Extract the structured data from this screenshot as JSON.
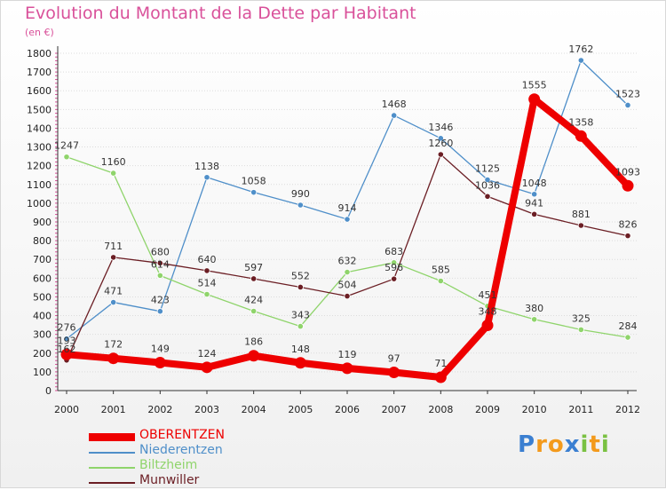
{
  "chart_data": {
    "type": "line",
    "title": "Evolution du Montant de la Dette par Habitant",
    "unit_label": "(en €)",
    "xlabel": "",
    "ylabel": "",
    "categories": [
      "2000",
      "2001",
      "2002",
      "2003",
      "2004",
      "2005",
      "2006",
      "2007",
      "2008",
      "2009",
      "2010",
      "2011",
      "2012"
    ],
    "ylim": [
      0,
      1800
    ],
    "yticks": [
      0,
      100,
      200,
      300,
      400,
      500,
      600,
      700,
      800,
      900,
      1000,
      1100,
      1200,
      1300,
      1400,
      1500,
      1600,
      1700,
      1800
    ],
    "series": [
      {
        "name": "Niederentzen",
        "color": "#4f8fc9",
        "values": [
          276,
          471,
          423,
          1138,
          1058,
          990,
          914,
          1468,
          1346,
          1125,
          1048,
          1762,
          1523
        ]
      },
      {
        "name": "Biltzheim",
        "color": "#8fd46b",
        "values": [
          1247,
          1160,
          614,
          514,
          424,
          343,
          632,
          683,
          585,
          451,
          380,
          325,
          284
        ]
      },
      {
        "name": "Munwiller",
        "color": "#6b1e24",
        "values": [
          162,
          711,
          680,
          640,
          597,
          552,
          504,
          596,
          1260,
          1036,
          941,
          881,
          826
        ]
      },
      {
        "name": "OBERENTZEN",
        "color": "#ee0000",
        "values": [
          193,
          172,
          149,
          124,
          186,
          148,
          119,
          97,
          71,
          348,
          1555,
          1358,
          1093
        ]
      }
    ],
    "legend": [
      "OBERENTZEN",
      "Niederentzen",
      "Biltzheim",
      "Munwiller"
    ]
  },
  "logo": {
    "text": "Proxiti",
    "letters": [
      "P",
      "r",
      "o",
      "x",
      "i",
      "t",
      "i"
    ],
    "colors": [
      "#3b7fd1",
      "#f39a1c",
      "#f39a1c",
      "#3b7fd1",
      "#7ac142",
      "#f39a1c",
      "#7ac142"
    ]
  }
}
